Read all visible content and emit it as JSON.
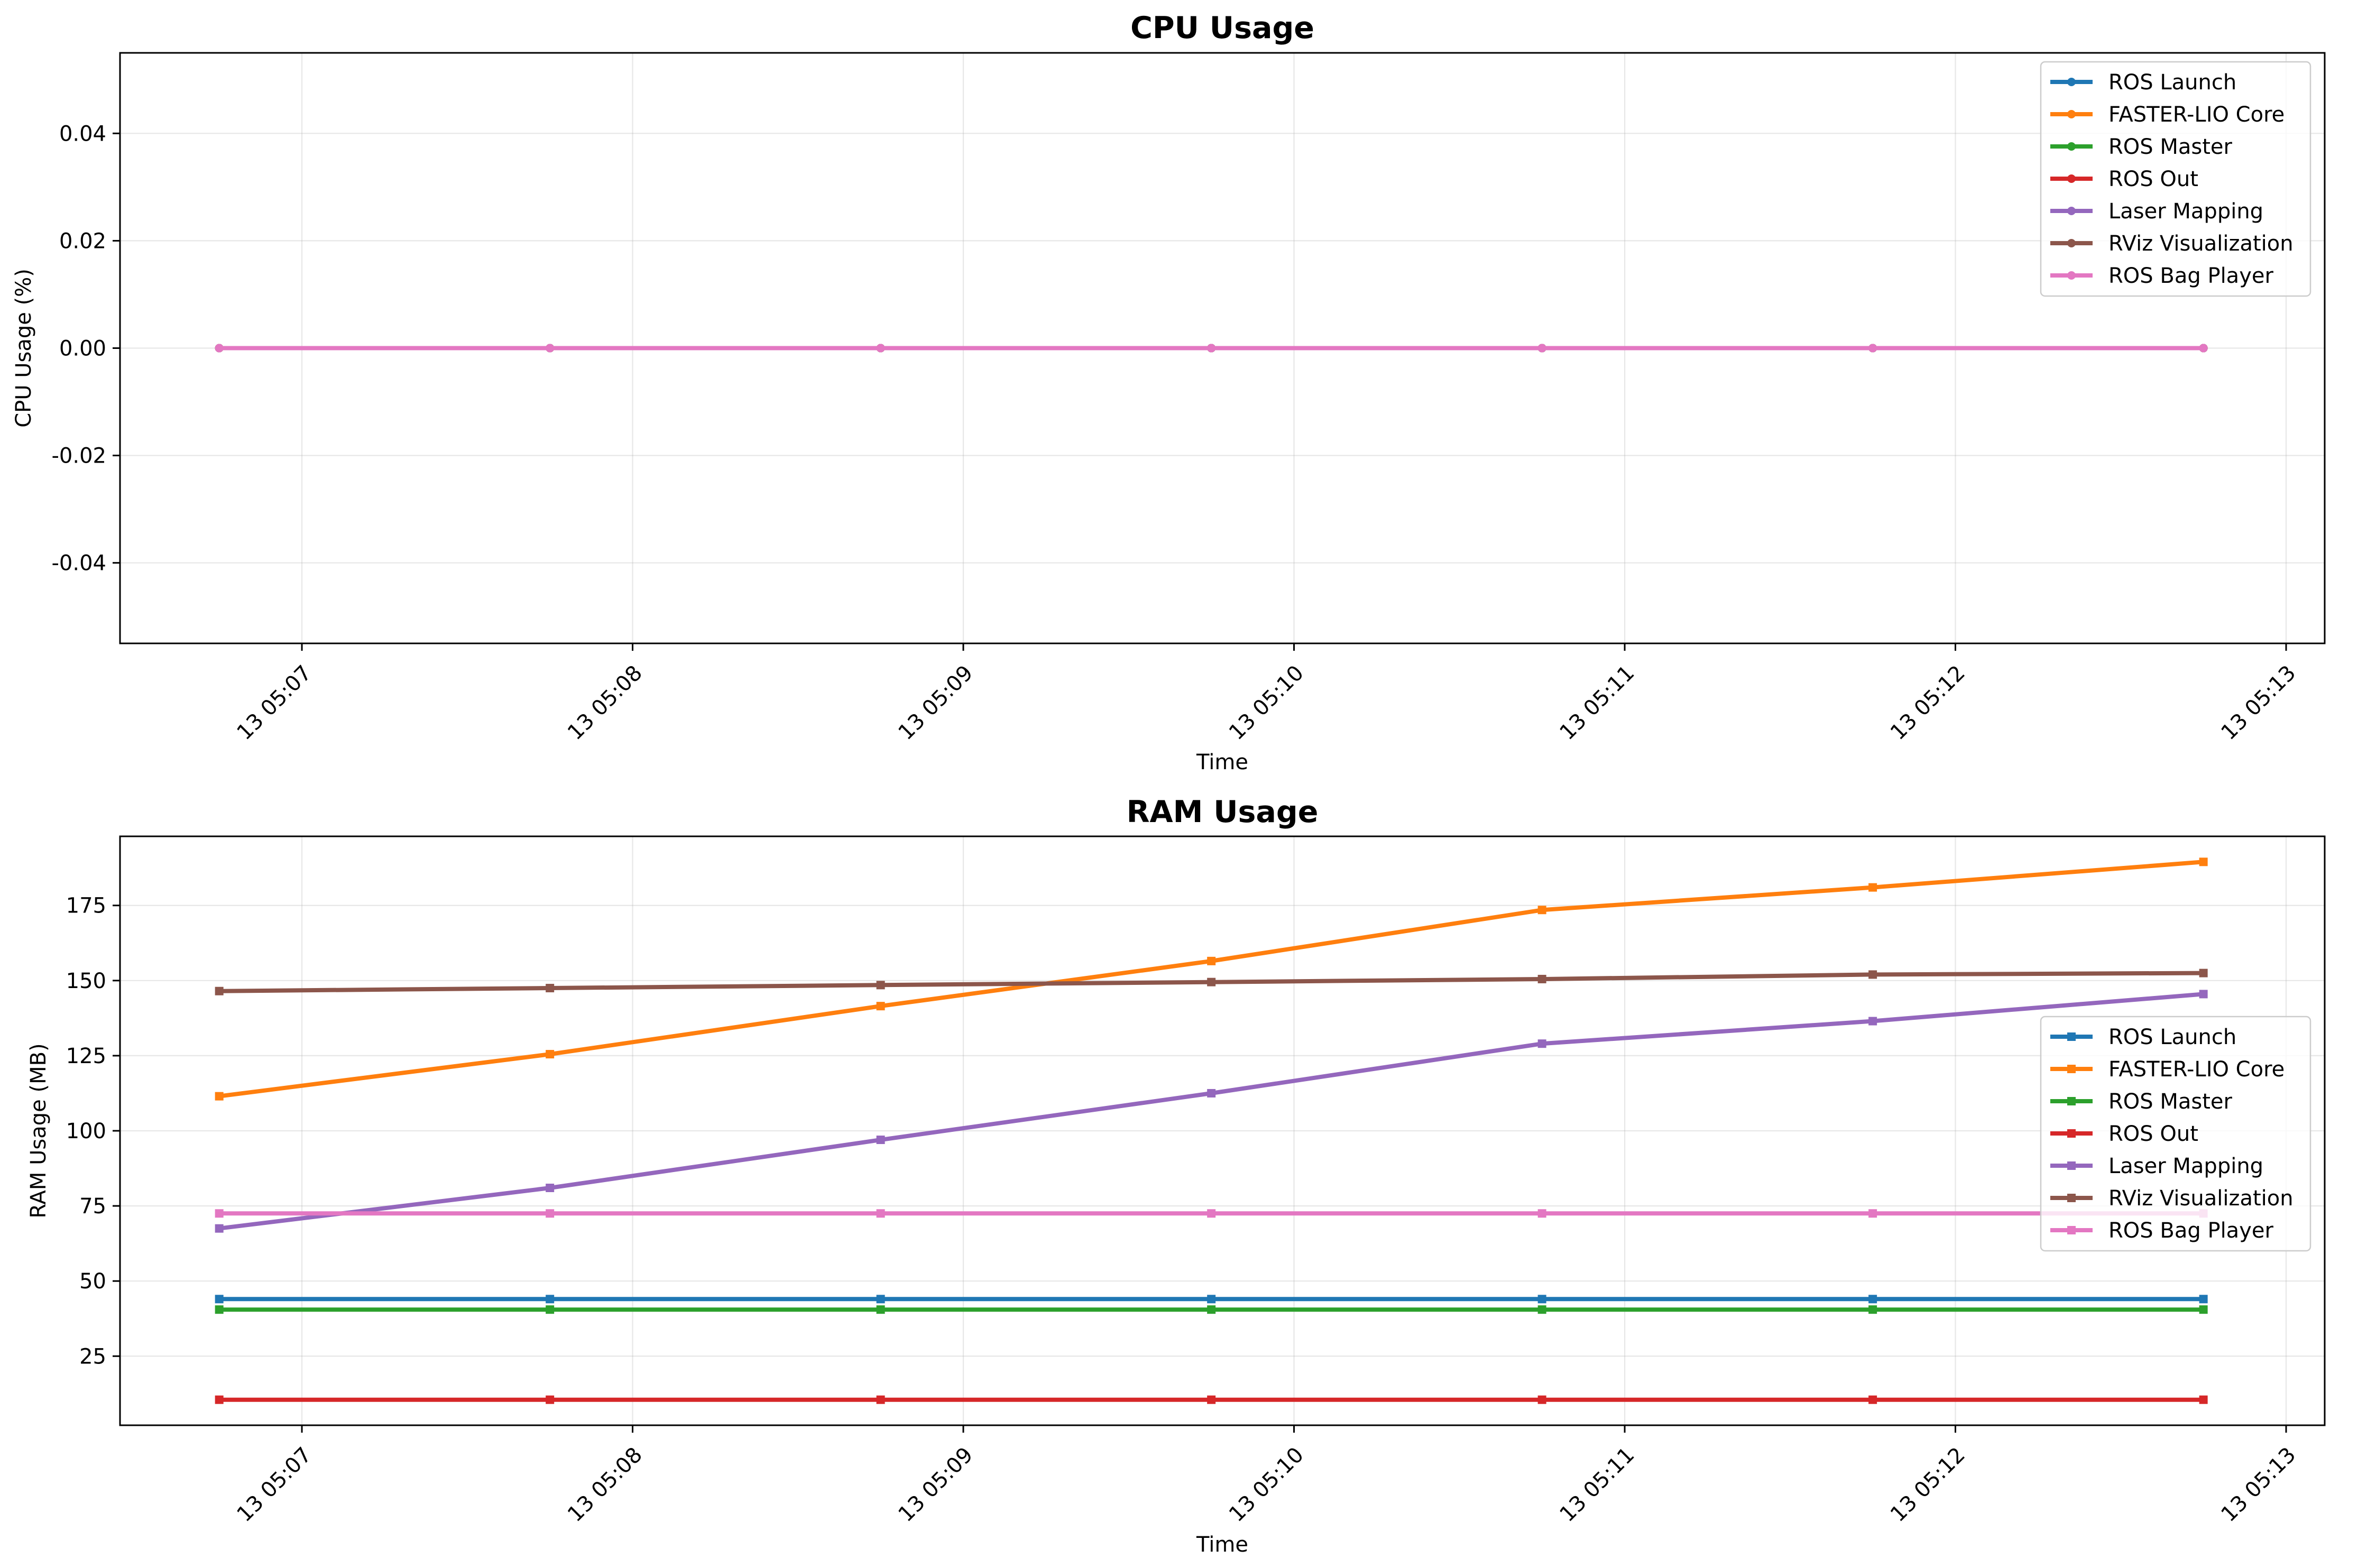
{
  "chart_data": [
    {
      "type": "line",
      "title": "CPU Usage",
      "xlabel": "Time",
      "ylabel": "CPU Usage (%)",
      "ylim": [
        -0.055,
        0.055
      ],
      "yticks": [
        -0.04,
        -0.02,
        0.0,
        0.02,
        0.04
      ],
      "ytick_labels": [
        "-0.04",
        "-0.02",
        "0.00",
        "0.02",
        "0.04"
      ],
      "xlim": [
        "05:06:27",
        "05:13:07"
      ],
      "xticks": [
        "05:07:00",
        "05:08:00",
        "05:09:00",
        "05:10:00",
        "05:11:00",
        "05:12:00",
        "05:13:00"
      ],
      "xtick_labels": [
        "13 05:07",
        "13 05:08",
        "13 05:09",
        "13 05:10",
        "13 05:11",
        "13 05:12",
        "13 05:13"
      ],
      "x": [
        "05:06:45",
        "05:07:45",
        "05:08:45",
        "05:09:45",
        "05:10:45",
        "05:11:45",
        "05:12:45"
      ],
      "grid": true,
      "legend_position": "upper right",
      "marker": "circle",
      "series": [
        {
          "name": "ROS Launch",
          "color": "#1f77b4",
          "values": [
            0,
            0,
            0,
            0,
            0,
            0,
            0
          ]
        },
        {
          "name": "FASTER-LIO Core",
          "color": "#ff7f0e",
          "values": [
            0,
            0,
            0,
            0,
            0,
            0,
            0
          ]
        },
        {
          "name": "ROS Master",
          "color": "#2ca02c",
          "values": [
            0,
            0,
            0,
            0,
            0,
            0,
            0
          ]
        },
        {
          "name": "ROS Out",
          "color": "#d62728",
          "values": [
            0,
            0,
            0,
            0,
            0,
            0,
            0
          ]
        },
        {
          "name": "Laser Mapping",
          "color": "#9467bd",
          "values": [
            0,
            0,
            0,
            0,
            0,
            0,
            0
          ]
        },
        {
          "name": "RViz Visualization",
          "color": "#8c564b",
          "values": [
            0,
            0,
            0,
            0,
            0,
            0,
            0
          ]
        },
        {
          "name": "ROS Bag Player",
          "color": "#e377c2",
          "values": [
            0,
            0,
            0,
            0,
            0,
            0,
            0
          ]
        }
      ]
    },
    {
      "type": "line",
      "title": "RAM Usage",
      "xlabel": "Time",
      "ylabel": "RAM Usage (MB)",
      "ylim": [
        2,
        198
      ],
      "yticks": [
        25,
        50,
        75,
        100,
        125,
        150,
        175
      ],
      "ytick_labels": [
        "25",
        "50",
        "75",
        "100",
        "125",
        "150",
        "175"
      ],
      "xlim": [
        "05:06:27",
        "05:13:07"
      ],
      "xticks": [
        "05:07:00",
        "05:08:00",
        "05:09:00",
        "05:10:00",
        "05:11:00",
        "05:12:00",
        "05:13:00"
      ],
      "xtick_labels": [
        "13 05:07",
        "13 05:08",
        "13 05:09",
        "13 05:10",
        "13 05:11",
        "13 05:12",
        "13 05:13"
      ],
      "x": [
        "05:06:45",
        "05:07:45",
        "05:08:45",
        "05:09:45",
        "05:10:45",
        "05:11:45",
        "05:12:45"
      ],
      "grid": true,
      "legend_position": "center right",
      "marker": "square",
      "series": [
        {
          "name": "ROS Launch",
          "color": "#1f77b4",
          "values": [
            44,
            44,
            44,
            44,
            44,
            44,
            44
          ]
        },
        {
          "name": "FASTER-LIO Core",
          "color": "#ff7f0e",
          "values": [
            111.5,
            125.5,
            141.5,
            156.5,
            173.5,
            181,
            189.5
          ]
        },
        {
          "name": "ROS Master",
          "color": "#2ca02c",
          "values": [
            40.5,
            40.5,
            40.5,
            40.5,
            40.5,
            40.5,
            40.5
          ]
        },
        {
          "name": "ROS Out",
          "color": "#d62728",
          "values": [
            10.5,
            10.5,
            10.5,
            10.5,
            10.5,
            10.5,
            10.5
          ]
        },
        {
          "name": "Laser Mapping",
          "color": "#9467bd",
          "values": [
            67.5,
            81,
            97,
            112.5,
            129,
            136.5,
            145.5
          ]
        },
        {
          "name": "RViz Visualization",
          "color": "#8c564b",
          "values": [
            146.5,
            147.5,
            148.5,
            149.5,
            150.5,
            152,
            152.5
          ]
        },
        {
          "name": "ROS Bag Player",
          "color": "#e377c2",
          "values": [
            72.5,
            72.5,
            72.5,
            72.5,
            72.5,
            72.5,
            72.5
          ]
        }
      ]
    }
  ]
}
